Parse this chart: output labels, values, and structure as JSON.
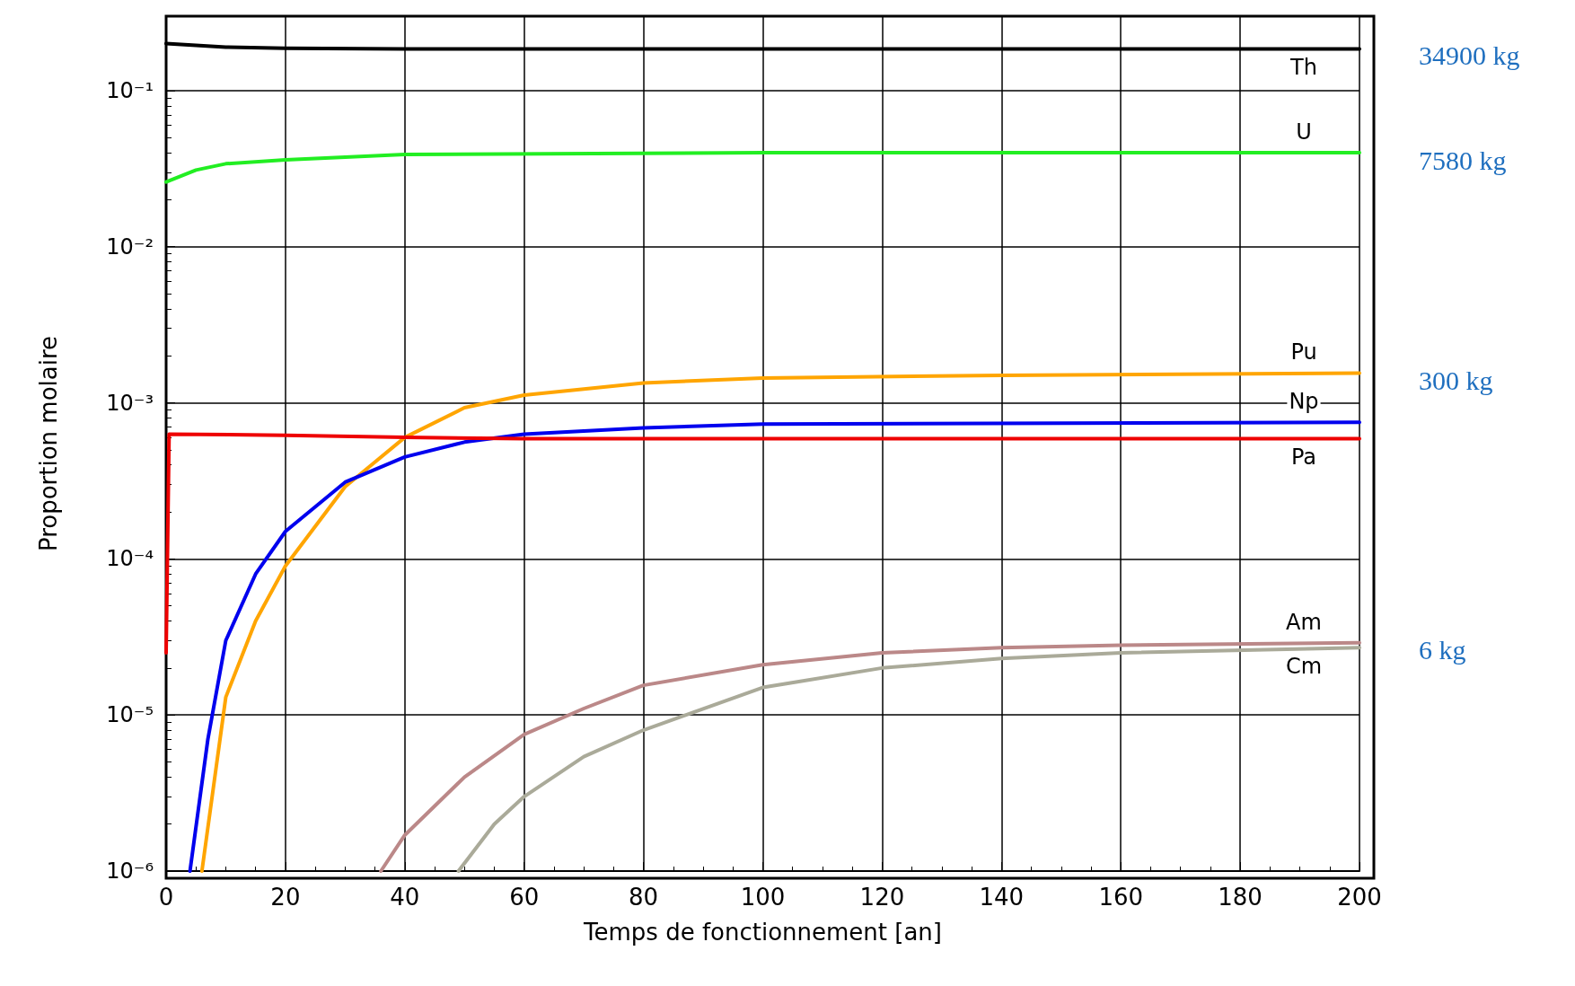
{
  "chart_data": {
    "type": "line",
    "xlabel": "Temps de fonctionnement [an]",
    "ylabel": "Proportion molaire",
    "log": "y",
    "grid": true,
    "legend": false,
    "marker": "none",
    "line_style": "solid",
    "xlim": [
      0,
      200
    ],
    "xticks": [
      0,
      20,
      40,
      60,
      80,
      100,
      120,
      140,
      160,
      180,
      200
    ],
    "ylim": [
      1e-06,
      0.3
    ],
    "yticks": [
      {
        "value": 1e-06,
        "label": "10⁻⁶"
      },
      {
        "value": 1e-05,
        "label": "10⁻⁵"
      },
      {
        "value": 0.0001,
        "label": "10⁻⁴"
      },
      {
        "value": 0.001,
        "label": "10⁻³"
      },
      {
        "value": 0.01,
        "label": "10⁻²"
      },
      {
        "value": 0.1,
        "label": "10⁻¹"
      }
    ],
    "series": [
      {
        "name": "Th",
        "color": "#000000",
        "x": [
          0,
          10,
          20,
          40,
          100,
          200
        ],
        "values": [
          0.2,
          0.19,
          0.187,
          0.185,
          0.185,
          0.185
        ]
      },
      {
        "name": "U",
        "color": "#22ee22",
        "x": [
          0,
          5,
          10,
          20,
          40,
          100,
          200
        ],
        "values": [
          0.026,
          0.031,
          0.034,
          0.036,
          0.039,
          0.04,
          0.04
        ]
      },
      {
        "name": "Pu",
        "color": "#ffa500",
        "x": [
          6,
          10,
          15,
          20,
          30,
          40,
          50,
          60,
          80,
          100,
          140,
          200
        ],
        "values": [
          1e-06,
          1.3e-05,
          4e-05,
          9e-05,
          0.00029,
          0.0006,
          0.00093,
          0.00112,
          0.00134,
          0.00144,
          0.0015,
          0.00155
        ]
      },
      {
        "name": "Np",
        "color": "#0000ee",
        "x": [
          4,
          7,
          10,
          15,
          20,
          30,
          40,
          50,
          60,
          80,
          100,
          200
        ],
        "values": [
          1e-06,
          7e-06,
          3e-05,
          8e-05,
          0.00015,
          0.00031,
          0.00045,
          0.00056,
          0.00063,
          0.00069,
          0.00073,
          0.00075
        ]
      },
      {
        "name": "Pa",
        "color": "#ee0000",
        "x": [
          0,
          0.5,
          20,
          40,
          60,
          100,
          200
        ],
        "values": [
          2.5e-05,
          0.00063,
          0.00062,
          0.0006,
          0.00059,
          0.00059,
          0.00059
        ]
      },
      {
        "name": "Am",
        "color": "#bb8888",
        "x": [
          36,
          40,
          50,
          60,
          70,
          80,
          100,
          120,
          140,
          160,
          200
        ],
        "values": [
          1e-06,
          1.7e-06,
          4e-06,
          7.5e-06,
          1.1e-05,
          1.55e-05,
          2.1e-05,
          2.5e-05,
          2.7e-05,
          2.8e-05,
          2.9e-05
        ]
      },
      {
        "name": "Cm",
        "color": "#aaaa99",
        "x": [
          49,
          55,
          60,
          70,
          80,
          100,
          120,
          140,
          160,
          200
        ],
        "values": [
          1e-06,
          2e-06,
          3e-06,
          5.4e-06,
          8e-06,
          1.5e-05,
          2e-05,
          2.3e-05,
          2.5e-05,
          2.7e-05
        ]
      }
    ],
    "annotations": [
      "34900 kg",
      "7580 kg",
      "300 kg",
      "6 kg"
    ]
  }
}
